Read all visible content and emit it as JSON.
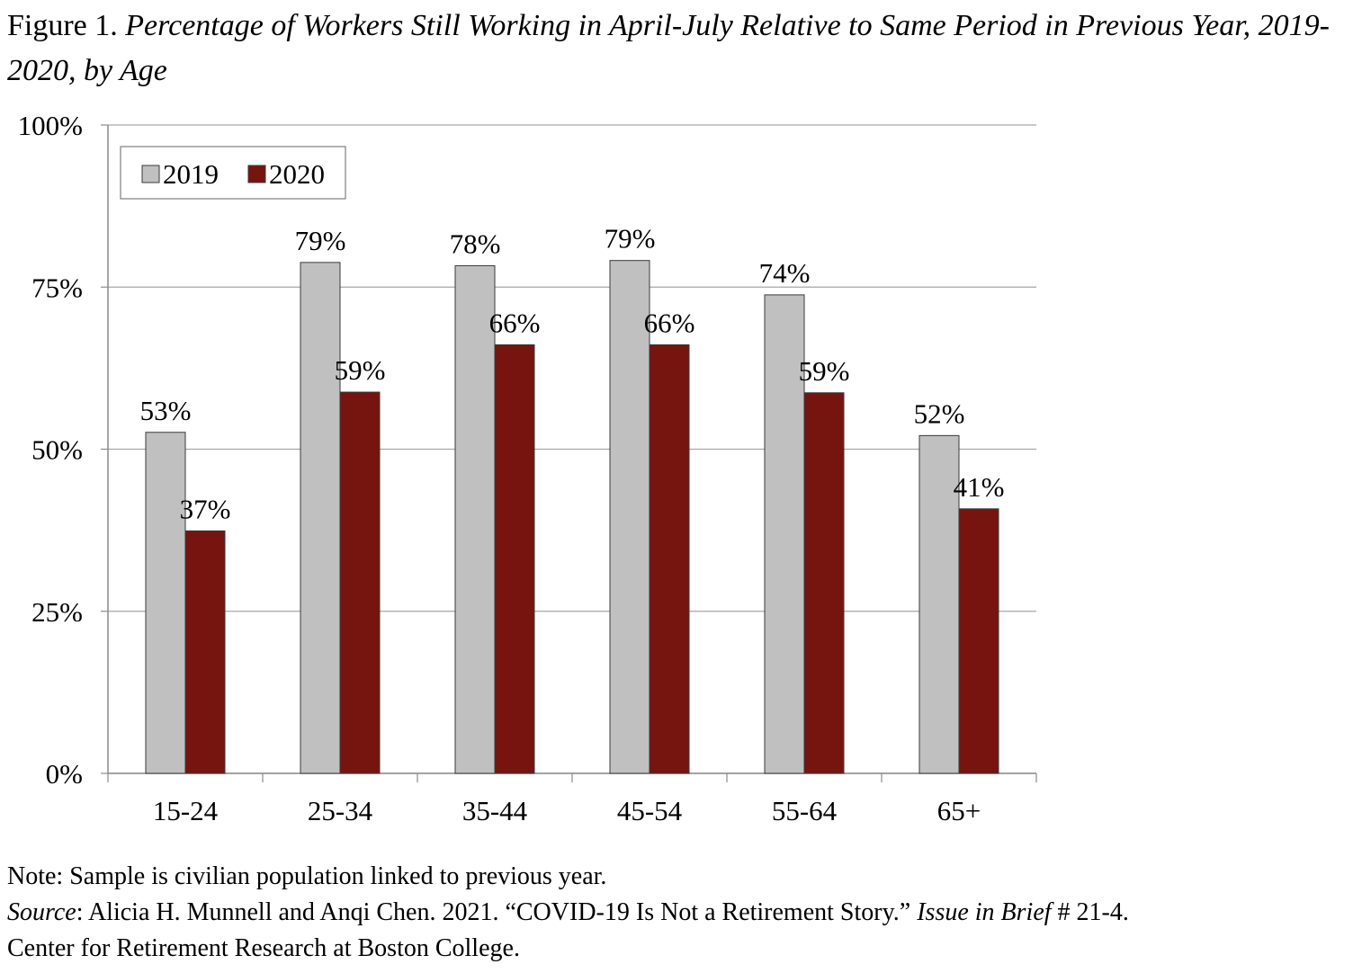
{
  "figure": {
    "label": "Figure 1.",
    "title": "Percentage of Workers Still Working in April-July Relative to Same Period in Previous Year, 2019-2020, by Age"
  },
  "chart_data": {
    "type": "bar",
    "categories": [
      "15-24",
      "25-34",
      "35-44",
      "45-54",
      "55-64",
      "65+"
    ],
    "series": [
      {
        "name": "2019",
        "values": [
          52.6,
          78.8,
          78.3,
          79.1,
          73.8,
          52.1
        ],
        "labels": [
          "53%",
          "79%",
          "78%",
          "79%",
          "74%",
          "52%"
        ],
        "color": "#c0c0c0"
      },
      {
        "name": "2020",
        "values": [
          37.4,
          58.8,
          66.1,
          66.1,
          58.7,
          40.8
        ],
        "labels": [
          "37%",
          "59%",
          "66%",
          "66%",
          "59%",
          "41%"
        ],
        "color": "#76140f"
      }
    ],
    "ylim": [
      0,
      100
    ],
    "yticks": [
      0,
      25,
      50,
      75,
      100
    ],
    "ytick_labels": [
      "0%",
      "25%",
      "50%",
      "75%",
      "100%"
    ],
    "grid": true,
    "legend_position": "top-left"
  },
  "notes": {
    "note": "Note: Sample is civilian population linked to previous year.",
    "source_label": "Source",
    "source_text_1": ": Alicia H. Munnell and Anqi Chen. 2021. “COVID-19 Is Not a Retirement Story.” ",
    "source_italic": "Issue in Brief",
    "source_text_2": " # 21-4.",
    "source_line_2": "Center for Retirement Research at Boston College."
  }
}
